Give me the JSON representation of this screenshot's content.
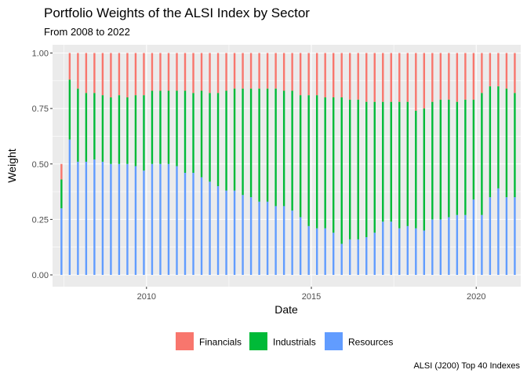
{
  "chart_data": {
    "type": "bar",
    "stacked": true,
    "title": "Portfolio Weights of the ALSI Index by Sector",
    "subtitle": "From 2008 to 2022",
    "xlabel": "Date",
    "ylabel": "Weight",
    "caption": "ALSI (J200) Top 40 Indexes",
    "ylim": [
      0,
      1
    ],
    "xlim_years": [
      2007.15,
      2021.35
    ],
    "y_ticks": [
      {
        "value": 0.0,
        "label": "0.00"
      },
      {
        "value": 0.25,
        "label": "0.25"
      },
      {
        "value": 0.5,
        "label": "0.50"
      },
      {
        "value": 0.75,
        "label": "0.75"
      },
      {
        "value": 1.0,
        "label": "1.00"
      }
    ],
    "x_ticks": [
      {
        "value": 2010,
        "label": "2010"
      },
      {
        "value": 2015,
        "label": "2015"
      },
      {
        "value": 2020,
        "label": "2020"
      }
    ],
    "grid": true,
    "legend_position": "bottom",
    "legend": [
      {
        "name": "Financials",
        "color": "#F8766D"
      },
      {
        "name": "Industrials",
        "color": "#00BA38"
      },
      {
        "name": "Resources",
        "color": "#619CFF"
      }
    ],
    "x": [
      2007.42,
      2007.67,
      2007.92,
      2008.17,
      2008.42,
      2008.67,
      2008.92,
      2009.17,
      2009.42,
      2009.67,
      2009.92,
      2010.17,
      2010.42,
      2010.67,
      2010.92,
      2011.17,
      2011.42,
      2011.67,
      2011.92,
      2012.17,
      2012.42,
      2012.67,
      2012.92,
      2013.17,
      2013.42,
      2013.67,
      2013.92,
      2014.17,
      2014.42,
      2014.67,
      2014.92,
      2015.17,
      2015.42,
      2015.67,
      2015.92,
      2016.17,
      2016.42,
      2016.67,
      2016.92,
      2017.17,
      2017.42,
      2017.67,
      2017.92,
      2018.17,
      2018.42,
      2018.67,
      2018.92,
      2019.17,
      2019.42,
      2019.67,
      2019.92,
      2020.17,
      2020.42,
      2020.67,
      2020.92,
      2021.17
    ],
    "series": [
      {
        "name": "Resources",
        "values": [
          0.3,
          0.61,
          0.51,
          0.51,
          0.52,
          0.51,
          0.5,
          0.5,
          0.5,
          0.49,
          0.47,
          0.5,
          0.5,
          0.5,
          0.49,
          0.46,
          0.46,
          0.44,
          0.42,
          0.4,
          0.38,
          0.38,
          0.36,
          0.35,
          0.33,
          0.33,
          0.31,
          0.31,
          0.29,
          0.26,
          0.22,
          0.21,
          0.21,
          0.19,
          0.14,
          0.16,
          0.16,
          0.17,
          0.19,
          0.24,
          0.24,
          0.21,
          0.22,
          0.21,
          0.2,
          0.25,
          0.25,
          0.26,
          0.27,
          0.27,
          0.34,
          0.27,
          0.35,
          0.39,
          0.35,
          0.35
        ]
      },
      {
        "name": "Industrials",
        "values": [
          0.13,
          0.27,
          0.33,
          0.31,
          0.3,
          0.3,
          0.3,
          0.31,
          0.3,
          0.32,
          0.34,
          0.33,
          0.33,
          0.33,
          0.34,
          0.37,
          0.36,
          0.39,
          0.4,
          0.42,
          0.45,
          0.46,
          0.48,
          0.49,
          0.51,
          0.51,
          0.53,
          0.52,
          0.54,
          0.55,
          0.59,
          0.6,
          0.59,
          0.61,
          0.66,
          0.63,
          0.63,
          0.61,
          0.59,
          0.54,
          0.54,
          0.57,
          0.56,
          0.53,
          0.55,
          0.53,
          0.54,
          0.53,
          0.51,
          0.52,
          0.45,
          0.55,
          0.5,
          0.46,
          0.49,
          0.47
        ]
      },
      {
        "name": "Financials",
        "values": [
          0.07,
          0.12,
          0.16,
          0.18,
          0.18,
          0.19,
          0.2,
          0.19,
          0.2,
          0.19,
          0.19,
          0.17,
          0.17,
          0.17,
          0.17,
          0.17,
          0.18,
          0.17,
          0.18,
          0.18,
          0.17,
          0.16,
          0.16,
          0.16,
          0.16,
          0.16,
          0.16,
          0.17,
          0.17,
          0.19,
          0.19,
          0.19,
          0.2,
          0.2,
          0.2,
          0.21,
          0.21,
          0.22,
          0.22,
          0.22,
          0.22,
          0.22,
          0.22,
          0.26,
          0.25,
          0.22,
          0.21,
          0.21,
          0.22,
          0.21,
          0.21,
          0.18,
          0.15,
          0.15,
          0.16,
          0.18
        ]
      }
    ]
  }
}
